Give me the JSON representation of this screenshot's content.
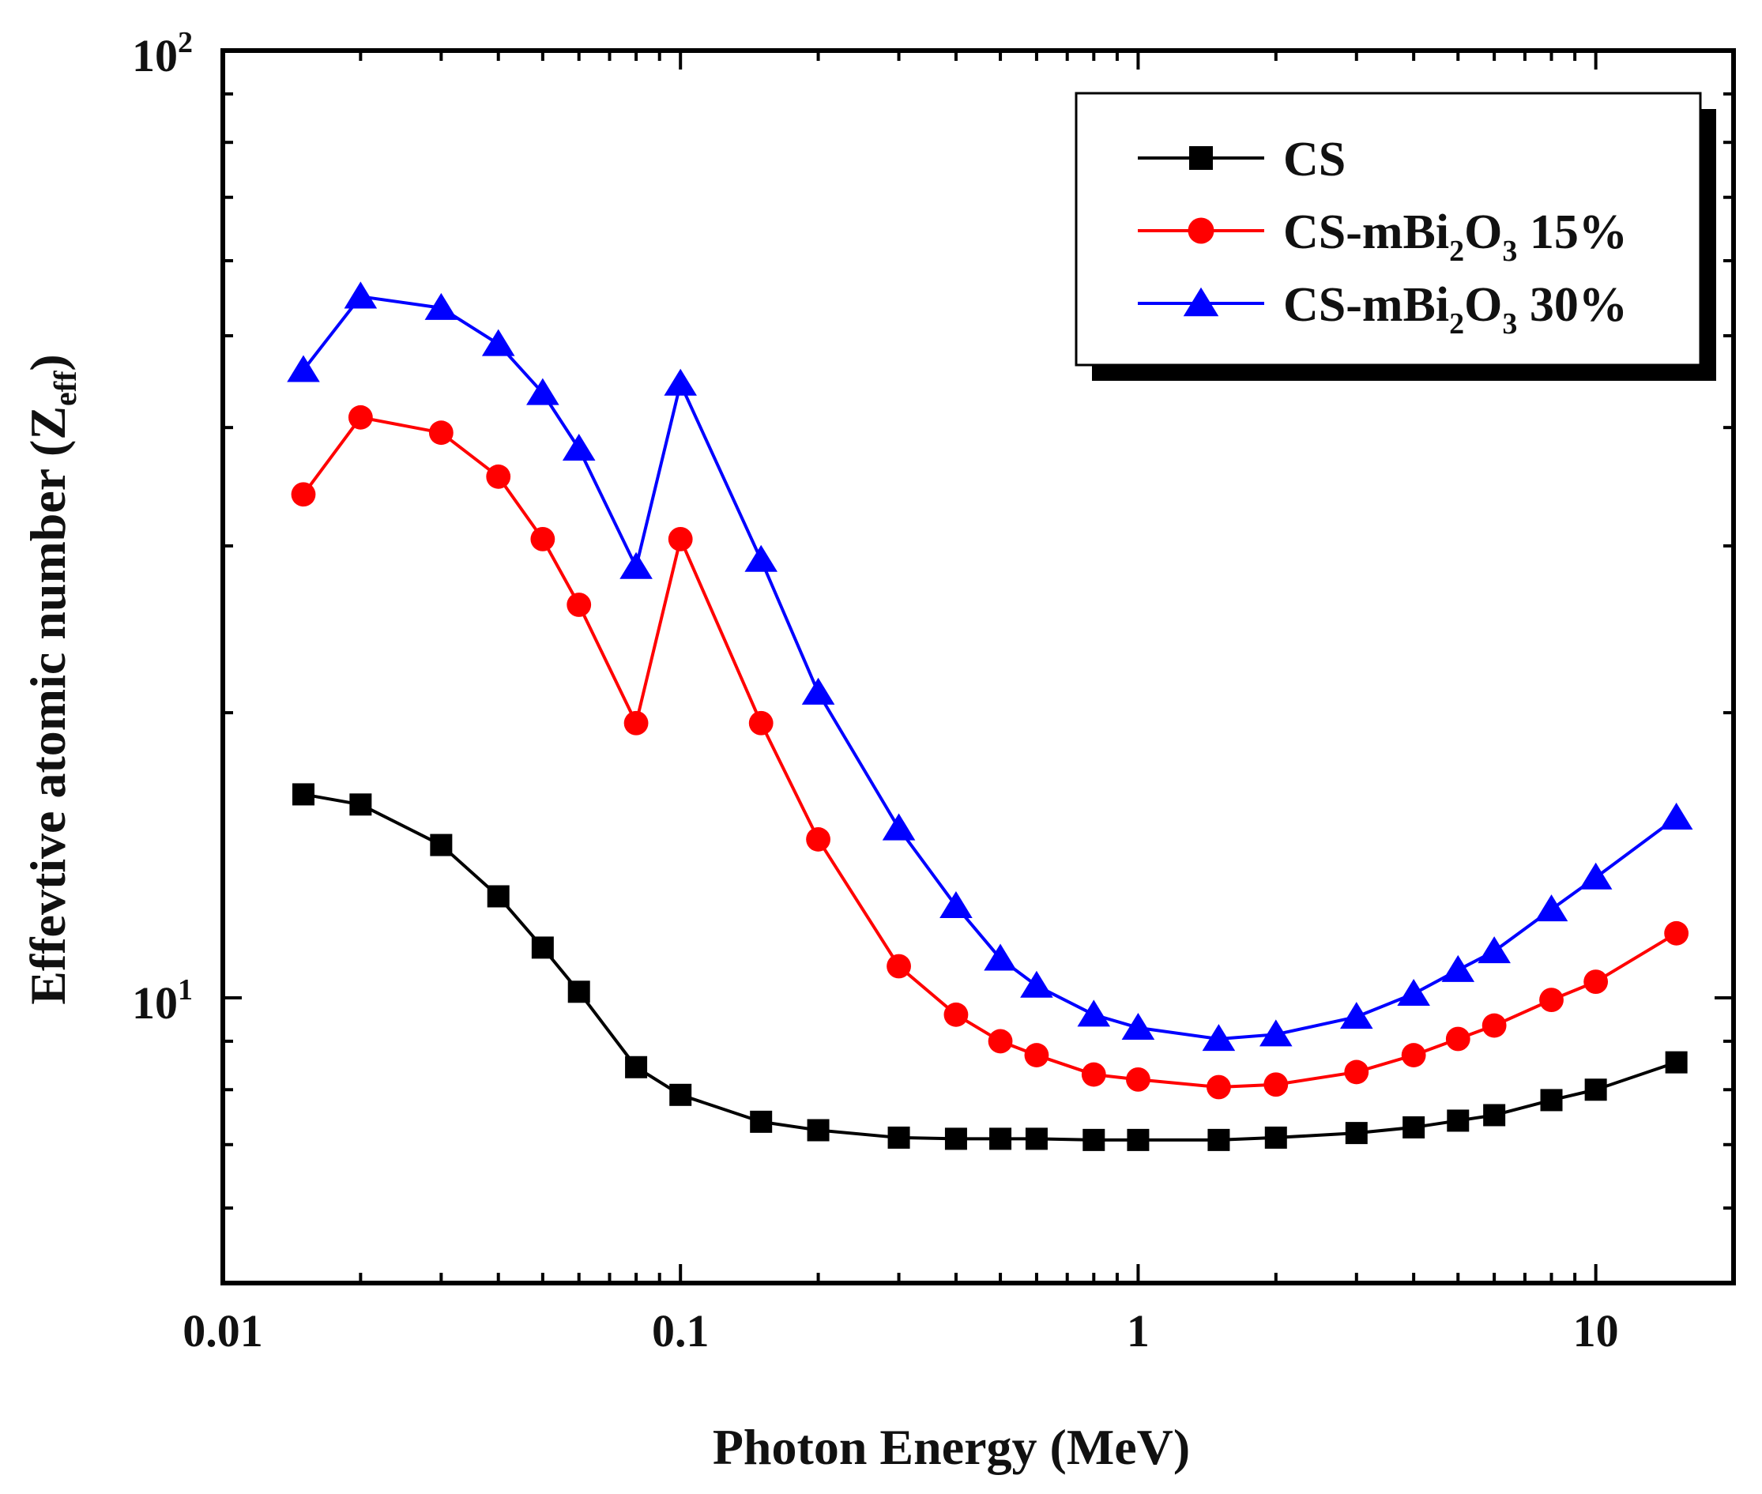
{
  "chart_data": {
    "type": "line",
    "title": "",
    "xlabel": "Photon Energy (MeV)",
    "ylabel": {
      "main": "Effevtive atomic number (Z",
      "subscript": "eff",
      "close": ")"
    },
    "xscale": "log",
    "yscale": "log",
    "xlim": [
      0.01,
      20
    ],
    "ylim": [
      5,
      100
    ],
    "x_ticks": [
      {
        "value": 0.01,
        "label": "0.01"
      },
      {
        "value": 0.1,
        "label": "0.1"
      },
      {
        "value": 1,
        "label": "1"
      },
      {
        "value": 10,
        "label": "10"
      }
    ],
    "y_ticks": [
      {
        "value": 10,
        "base": "10",
        "exp": "1"
      },
      {
        "value": 100,
        "base": "10",
        "exp": "2"
      }
    ],
    "legend_position": "top-right",
    "x": [
      0.015,
      0.02,
      0.03,
      0.04,
      0.05,
      0.06,
      0.08,
      0.1,
      0.15,
      0.2,
      0.3,
      0.4,
      0.5,
      0.6,
      0.8,
      1,
      1.5,
      2,
      3,
      4,
      5,
      6,
      8,
      10,
      15
    ],
    "series": [
      {
        "name": "CS",
        "legend": {
          "prefix": "CS",
          "sub": "",
          "mid": "",
          "sub2": "",
          "suffix": ""
        },
        "color": "#000000",
        "marker": "square",
        "values": [
          16.4,
          16.0,
          14.5,
          12.8,
          11.3,
          10.15,
          8.45,
          7.9,
          7.4,
          7.25,
          7.12,
          7.1,
          7.1,
          7.1,
          7.08,
          7.08,
          7.08,
          7.12,
          7.2,
          7.3,
          7.42,
          7.52,
          7.8,
          8.0,
          8.55
        ]
      },
      {
        "name": "CS-mBi2O3 15%",
        "legend": {
          "prefix": "CS-mBi",
          "sub": "2",
          "mid": "O",
          "sub2": "3",
          "suffix": " 15%"
        },
        "color": "#ff0000",
        "marker": "circle",
        "values": [
          34.0,
          41.0,
          39.5,
          35.5,
          30.5,
          26.0,
          19.5,
          30.5,
          19.5,
          14.7,
          10.8,
          9.6,
          9.0,
          8.7,
          8.3,
          8.2,
          8.05,
          8.1,
          8.35,
          8.7,
          9.05,
          9.35,
          9.95,
          10.4,
          11.7
        ]
      },
      {
        "name": "CS-mBi2O3 30%",
        "legend": {
          "prefix": "CS-mBi",
          "sub": "2",
          "mid": "O",
          "sub2": "3",
          "suffix": " 30%"
        },
        "color": "#0000ff",
        "marker": "triangle",
        "values": [
          46.0,
          55.0,
          53.5,
          49.0,
          43.5,
          38.0,
          28.5,
          44.5,
          29.0,
          21.0,
          15.1,
          12.5,
          11.0,
          10.3,
          9.6,
          9.3,
          9.05,
          9.15,
          9.55,
          10.1,
          10.7,
          11.2,
          12.4,
          13.4,
          15.5
        ]
      }
    ]
  }
}
